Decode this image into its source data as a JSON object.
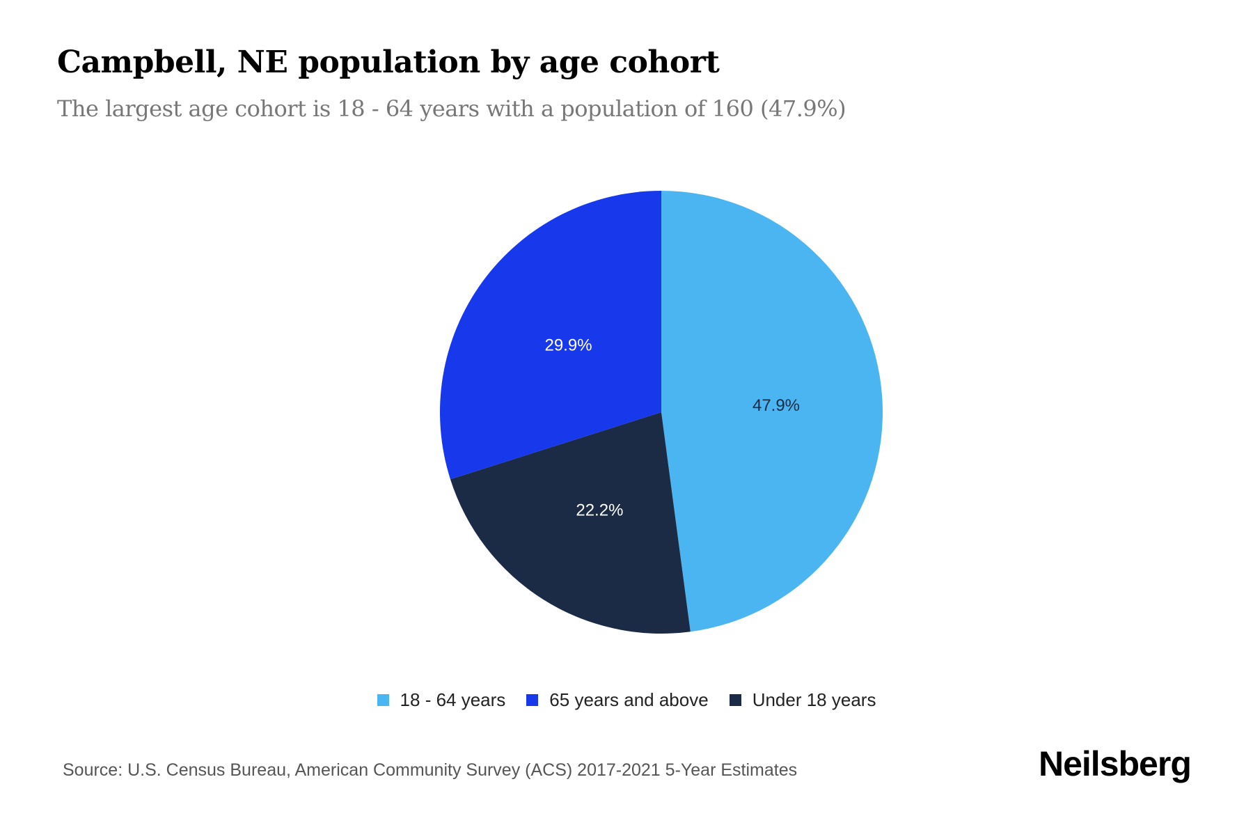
{
  "header": {
    "title": "Campbell, NE population by age cohort",
    "subtitle": "The largest age cohort is 18 - 64 years with a population of 160 (47.9%)"
  },
  "legend": [
    {
      "label": "18 - 64 years",
      "color": "#4AB5F0"
    },
    {
      "label": "65 years and above",
      "color": "#1738EB"
    },
    {
      "label": "Under 18 years",
      "color": "#1B2B45"
    }
  ],
  "slice_labels": [
    "47.9%",
    "29.9%",
    "22.2%"
  ],
  "footer": {
    "source": "Source: U.S. Census Bureau, American Community Survey (ACS) 2017-2021 5-Year Estimates",
    "brand": "Neilsberg"
  },
  "chart_data": {
    "type": "pie",
    "title": "Campbell, NE population by age cohort",
    "subtitle": "The largest age cohort is 18 - 64 years with a population of 160 (47.9%)",
    "categories": [
      "18 - 64 years",
      "Under 18 years",
      "65 years and above"
    ],
    "values": [
      47.9,
      22.2,
      29.9
    ],
    "unit": "%",
    "colors": [
      "#4AB5F0",
      "#1B2B45",
      "#1738EB"
    ],
    "data_labels": [
      "47.9%",
      "22.2%",
      "29.9%"
    ],
    "legend_position": "bottom",
    "legend_order": [
      "18 - 64 years",
      "65 years and above",
      "Under 18 years"
    ],
    "start_angle": "12 o'clock, clockwise",
    "source": "Source: U.S. Census Bureau, American Community Survey (ACS) 2017-2021 5-Year Estimates"
  }
}
